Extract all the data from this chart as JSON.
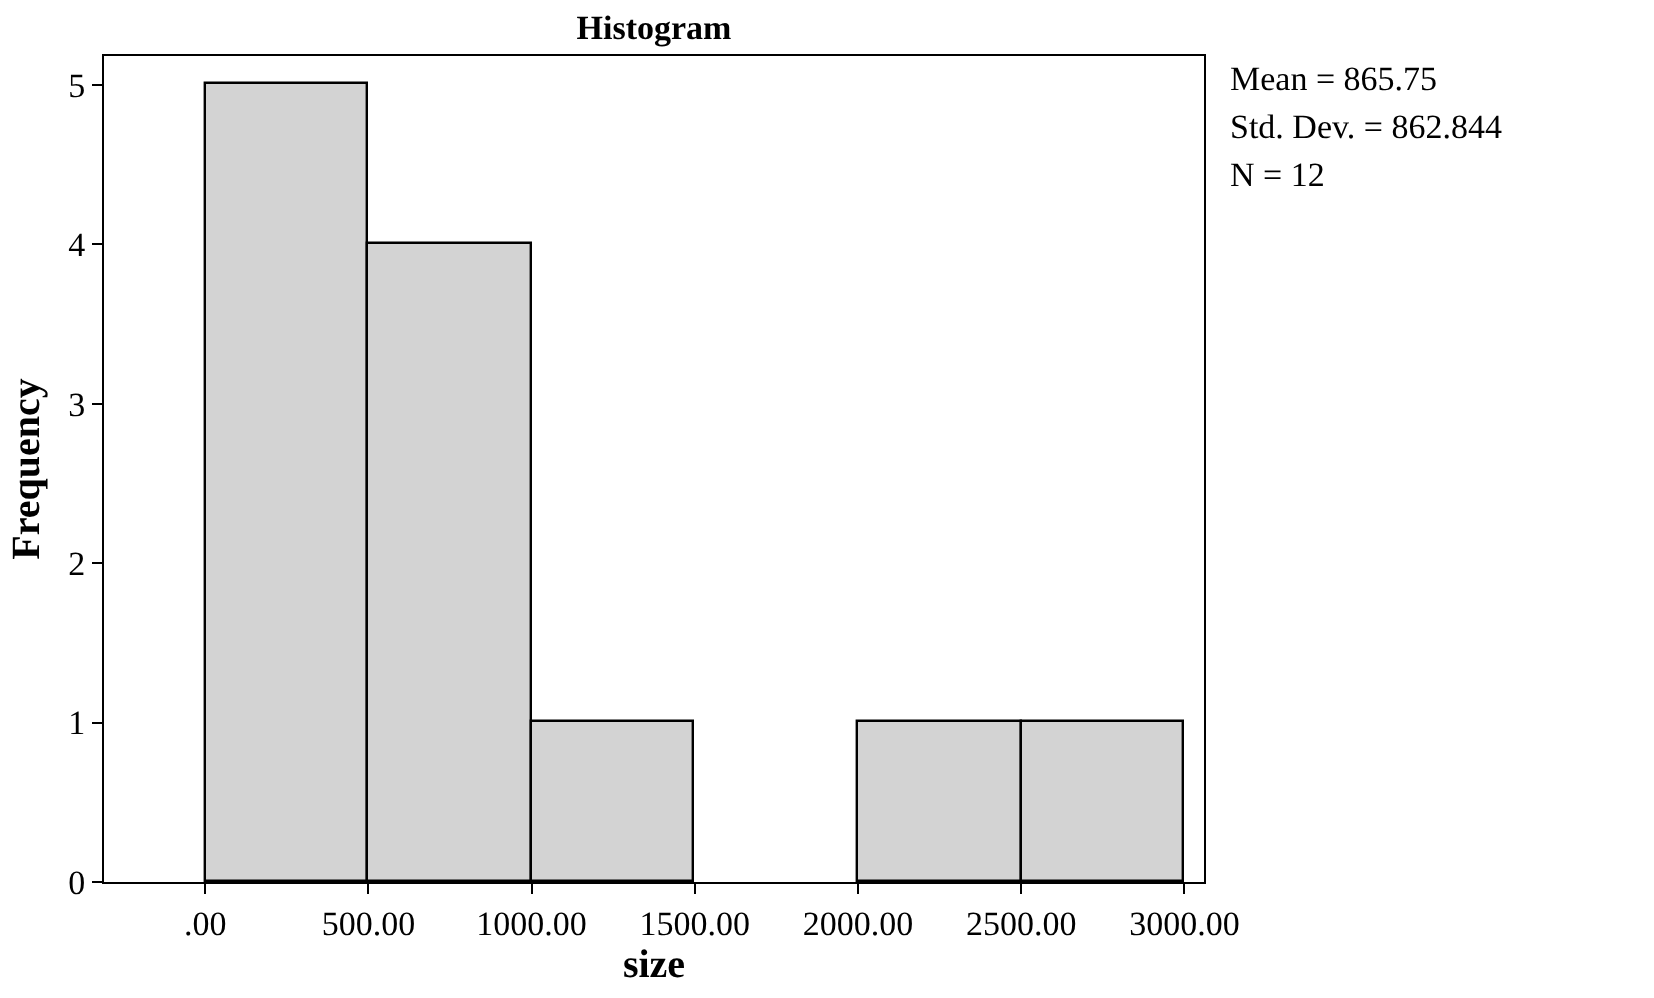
{
  "chart_data": {
    "type": "histogram",
    "title": "Histogram",
    "xlabel": "size",
    "ylabel": "Frequency",
    "bins": [
      0,
      500,
      1000,
      1500,
      2000,
      2500,
      3000
    ],
    "values": [
      5,
      4,
      1,
      0,
      1,
      1
    ],
    "color": "#d3d3d3",
    "xlim": [
      -310,
      3060
    ],
    "ylim": [
      0,
      5.18
    ],
    "xticks": [
      {
        "value": 0,
        "label": ".00"
      },
      {
        "value": 500,
        "label": "500.00"
      },
      {
        "value": 1000,
        "label": "1000.00"
      },
      {
        "value": 1500,
        "label": "1500.00"
      },
      {
        "value": 2000,
        "label": "2000.00"
      },
      {
        "value": 2500,
        "label": "2500.00"
      },
      {
        "value": 3000,
        "label": "3000.00"
      }
    ],
    "yticks": [
      0,
      1,
      2,
      3,
      4,
      5
    ],
    "annotations": [
      "Mean = 865.75",
      "Std. Dev. = 862.844",
      "N = 12"
    ]
  }
}
